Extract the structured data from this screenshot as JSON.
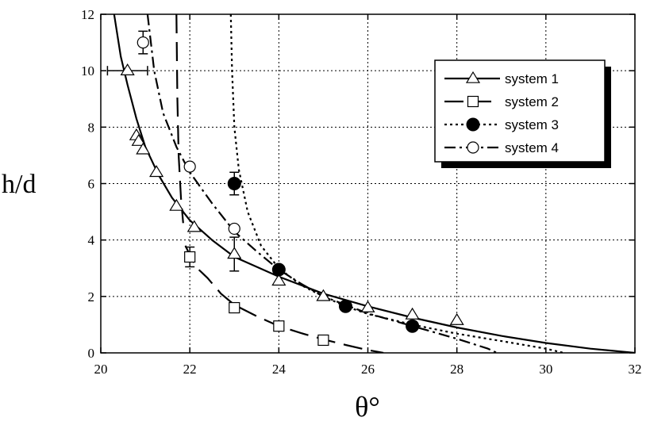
{
  "chart_data": {
    "type": "scatter",
    "title": "",
    "xlabel": "θ°",
    "ylabel": "h/d",
    "xlim": [
      20,
      32
    ],
    "ylim": [
      0,
      12
    ],
    "x_ticks": [
      "20",
      "22",
      "24",
      "26",
      "28",
      "30",
      "32"
    ],
    "y_ticks": [
      "0",
      "2",
      "4",
      "6",
      "8",
      "10",
      "12"
    ],
    "grid": true,
    "legend_position": "top-right",
    "series": [
      {
        "name": "system 1",
        "marker": "open-triangle",
        "line_style": "solid",
        "points": [
          [
            20.6,
            10.0
          ],
          [
            20.8,
            7.7
          ],
          [
            20.85,
            7.5
          ],
          [
            20.95,
            7.2
          ],
          [
            21.25,
            6.4
          ],
          [
            21.7,
            5.2
          ],
          [
            22.1,
            4.45
          ],
          [
            23.0,
            3.5
          ],
          [
            24.0,
            2.55
          ],
          [
            25.0,
            2.0
          ],
          [
            26.0,
            1.6
          ],
          [
            27.0,
            1.35
          ],
          [
            28.0,
            1.15
          ]
        ],
        "error_bars": [
          {
            "x": 20.6,
            "y": 10.0,
            "xerr": 0.45
          },
          {
            "x": 23.0,
            "y": 3.5,
            "yerr": 0.6
          }
        ],
        "curve": [
          [
            20.3,
            12.0
          ],
          [
            20.45,
            10.5
          ],
          [
            20.6,
            9.5
          ],
          [
            20.8,
            8.3
          ],
          [
            21.0,
            7.3
          ],
          [
            21.3,
            6.3
          ],
          [
            21.6,
            5.5
          ],
          [
            22.0,
            4.7
          ],
          [
            22.5,
            4.0
          ],
          [
            23.0,
            3.4
          ],
          [
            24.0,
            2.7
          ],
          [
            25.0,
            2.1
          ],
          [
            26.0,
            1.65
          ],
          [
            27.0,
            1.25
          ],
          [
            28.0,
            0.9
          ],
          [
            29.0,
            0.6
          ],
          [
            30.0,
            0.35
          ],
          [
            31.0,
            0.15
          ],
          [
            32.0,
            0.0
          ]
        ]
      },
      {
        "name": "system 2",
        "marker": "open-square",
        "line_style": "long-dash",
        "points": [
          [
            22.0,
            3.4
          ],
          [
            23.0,
            1.6
          ],
          [
            24.0,
            0.95
          ],
          [
            25.0,
            0.45
          ]
        ],
        "error_bars": [
          {
            "x": 22.0,
            "y": 3.4,
            "yerr": 0.35
          }
        ],
        "curve_left": [
          [
            21.7,
            12.0
          ],
          [
            21.72,
            9.0
          ],
          [
            21.75,
            7.0
          ],
          [
            21.8,
            5.5
          ],
          [
            21.85,
            4.6
          ]
        ],
        "curve": [
          [
            21.9,
            3.8
          ],
          [
            22.05,
            3.3
          ],
          [
            22.2,
            2.95
          ],
          [
            22.4,
            2.65
          ],
          [
            22.7,
            2.1
          ],
          [
            23.0,
            1.7
          ],
          [
            23.5,
            1.3
          ],
          [
            24.0,
            0.95
          ],
          [
            24.5,
            0.7
          ],
          [
            25.0,
            0.48
          ],
          [
            25.5,
            0.28
          ],
          [
            26.0,
            0.1
          ],
          [
            26.35,
            0.0
          ]
        ]
      },
      {
        "name": "system 3",
        "marker": "filled-circle",
        "line_style": "dotted",
        "points": [
          [
            23.0,
            6.0
          ],
          [
            24.0,
            2.95
          ],
          [
            25.5,
            1.65
          ],
          [
            27.0,
            0.95
          ]
        ],
        "error_bars": [
          {
            "x": 23.0,
            "y": 6.0,
            "yerr": 0.4
          }
        ],
        "curve": [
          [
            22.92,
            12.0
          ],
          [
            22.95,
            10.0
          ],
          [
            23.0,
            8.0
          ],
          [
            23.1,
            6.5
          ],
          [
            23.3,
            5.0
          ],
          [
            23.6,
            3.8
          ],
          [
            24.0,
            3.0
          ],
          [
            24.5,
            2.4
          ],
          [
            25.0,
            2.0
          ],
          [
            25.5,
            1.65
          ],
          [
            26.0,
            1.38
          ],
          [
            27.0,
            1.0
          ],
          [
            28.0,
            0.68
          ],
          [
            29.0,
            0.42
          ],
          [
            30.0,
            0.15
          ],
          [
            30.4,
            0.0
          ]
        ]
      },
      {
        "name": "system 4",
        "marker": "open-circle",
        "line_style": "dash-dot",
        "points": [
          [
            20.95,
            11.0
          ],
          [
            22.0,
            6.6
          ],
          [
            23.0,
            4.4
          ]
        ],
        "error_bars": [
          {
            "x": 20.95,
            "y": 11.0,
            "yerr": 0.4
          }
        ],
        "curve": [
          [
            21.05,
            12.0
          ],
          [
            21.2,
            10.0
          ],
          [
            21.4,
            8.5
          ],
          [
            21.7,
            7.3
          ],
          [
            22.0,
            6.4
          ],
          [
            22.5,
            5.3
          ],
          [
            23.0,
            4.3
          ],
          [
            23.5,
            3.6
          ],
          [
            24.0,
            2.95
          ],
          [
            24.5,
            2.45
          ],
          [
            25.0,
            2.0
          ],
          [
            26.0,
            1.4
          ],
          [
            27.0,
            0.95
          ],
          [
            28.0,
            0.5
          ],
          [
            28.7,
            0.15
          ],
          [
            28.9,
            0.0
          ]
        ]
      }
    ]
  }
}
